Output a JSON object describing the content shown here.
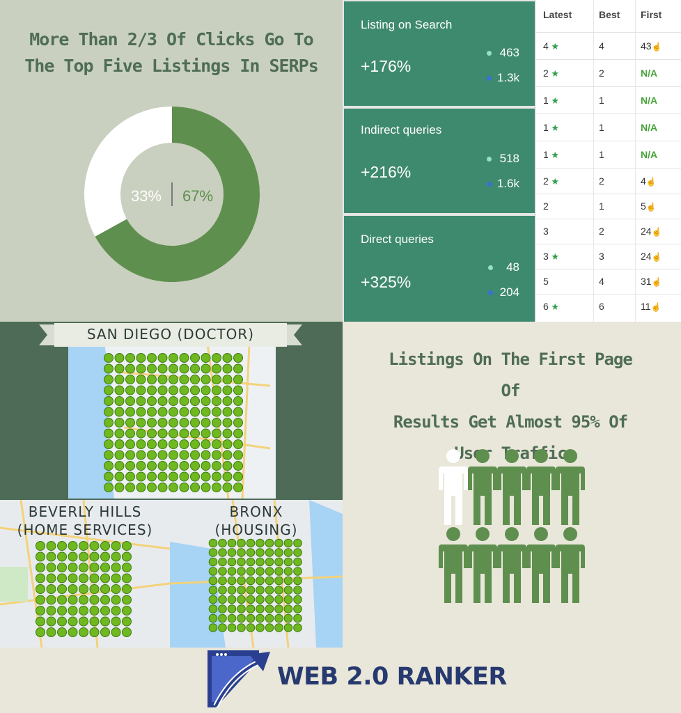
{
  "donut": {
    "title_line1": "More Than 2/3 Of Clicks Go To",
    "title_line2": "The Top Five Listings In SERPs",
    "label_left": "33%",
    "label_right": "67%",
    "share_green": 0.67,
    "colors": {
      "green": "#5f8f4e",
      "white": "#ffffff",
      "panel": "#c9d0bf"
    }
  },
  "stats": [
    {
      "label": "Listing on Search",
      "pct": "+176%",
      "before": "463",
      "after": "1.3k"
    },
    {
      "label": "Indirect queries",
      "pct": "+216%",
      "before": "518",
      "after": "1.6k"
    },
    {
      "label": "Direct queries",
      "pct": "+325%",
      "before": "48",
      "after": "204"
    }
  ],
  "table": {
    "headers": [
      "Latest",
      "Best",
      "First"
    ],
    "rows": [
      {
        "latest": "4",
        "latest_star": true,
        "best": "4",
        "first": "43",
        "first_thumb": true
      },
      {
        "latest": "2",
        "latest_star": true,
        "best": "2",
        "first": "N/A",
        "first_thumb": false
      },
      {
        "latest": "1",
        "latest_star": true,
        "best": "1",
        "first": "N/A",
        "first_thumb": false
      },
      {
        "latest": "1",
        "latest_star": true,
        "best": "1",
        "first": "N/A",
        "first_thumb": false
      },
      {
        "latest": "1",
        "latest_star": true,
        "best": "1",
        "first": "N/A",
        "first_thumb": false
      },
      {
        "latest": "2",
        "latest_star": true,
        "best": "2",
        "first": "4",
        "first_thumb": true
      },
      {
        "latest": "2",
        "latest_star": false,
        "best": "1",
        "first": "5",
        "first_thumb": true
      },
      {
        "latest": "3",
        "latest_star": false,
        "best": "2",
        "first": "24",
        "first_thumb": true
      },
      {
        "latest": "3",
        "latest_star": true,
        "best": "3",
        "first": "24",
        "first_thumb": true
      },
      {
        "latest": "5",
        "latest_star": false,
        "best": "4",
        "first": "31",
        "first_thumb": true
      },
      {
        "latest": "6",
        "latest_star": true,
        "best": "6",
        "first": "11",
        "first_thumb": true
      }
    ]
  },
  "maps": {
    "san_diego": "SAN DIEGO (DOCTOR)",
    "beverly_line1": "BEVERLY HILLS",
    "beverly_line2": "(HOME SERVICES)",
    "bronx_line1": "BRONX",
    "bronx_line2": "(HOUSING)",
    "marker_color": "#6fb820"
  },
  "people": {
    "title_line1": "Listings On The First Page Of",
    "title_line2": "Results Get Almost 95% Of",
    "title_line3": "User Traffic",
    "total": 10,
    "highlighted": 1,
    "colors": {
      "green": "#5f8f4e",
      "white": "#ffffff"
    }
  },
  "logo": {
    "text": "WEB 2.0 RANKER",
    "color": "#273a6f"
  }
}
